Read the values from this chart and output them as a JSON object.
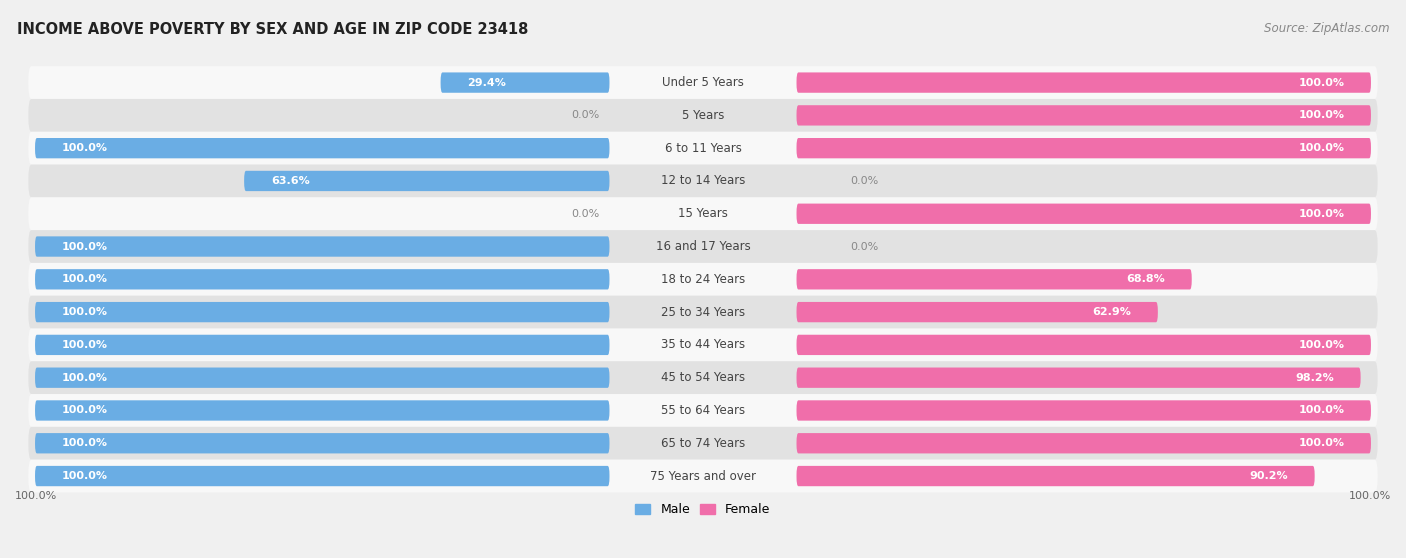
{
  "title": "INCOME ABOVE POVERTY BY SEX AND AGE IN ZIP CODE 23418",
  "source": "Source: ZipAtlas.com",
  "categories": [
    "Under 5 Years",
    "5 Years",
    "6 to 11 Years",
    "12 to 14 Years",
    "15 Years",
    "16 and 17 Years",
    "18 to 24 Years",
    "25 to 34 Years",
    "35 to 44 Years",
    "45 to 54 Years",
    "55 to 64 Years",
    "65 to 74 Years",
    "75 Years and over"
  ],
  "male_values": [
    29.4,
    0.0,
    100.0,
    63.6,
    0.0,
    100.0,
    100.0,
    100.0,
    100.0,
    100.0,
    100.0,
    100.0,
    100.0
  ],
  "female_values": [
    100.0,
    100.0,
    100.0,
    0.0,
    100.0,
    0.0,
    68.8,
    62.9,
    100.0,
    98.2,
    100.0,
    100.0,
    90.2
  ],
  "male_color": "#6aade4",
  "female_color": "#f06eaa",
  "male_label_color": "#6aade4",
  "female_label_color": "#f06eaa",
  "male_label": "Male",
  "female_label": "Female",
  "bg_color": "#f0f0f0",
  "row_bg_color": "#e2e2e2",
  "row_white_color": "#f8f8f8",
  "title_fontsize": 10.5,
  "source_fontsize": 8.5,
  "cat_fontsize": 8.5,
  "bar_label_fontsize": 8,
  "footer_label": "100.0%"
}
